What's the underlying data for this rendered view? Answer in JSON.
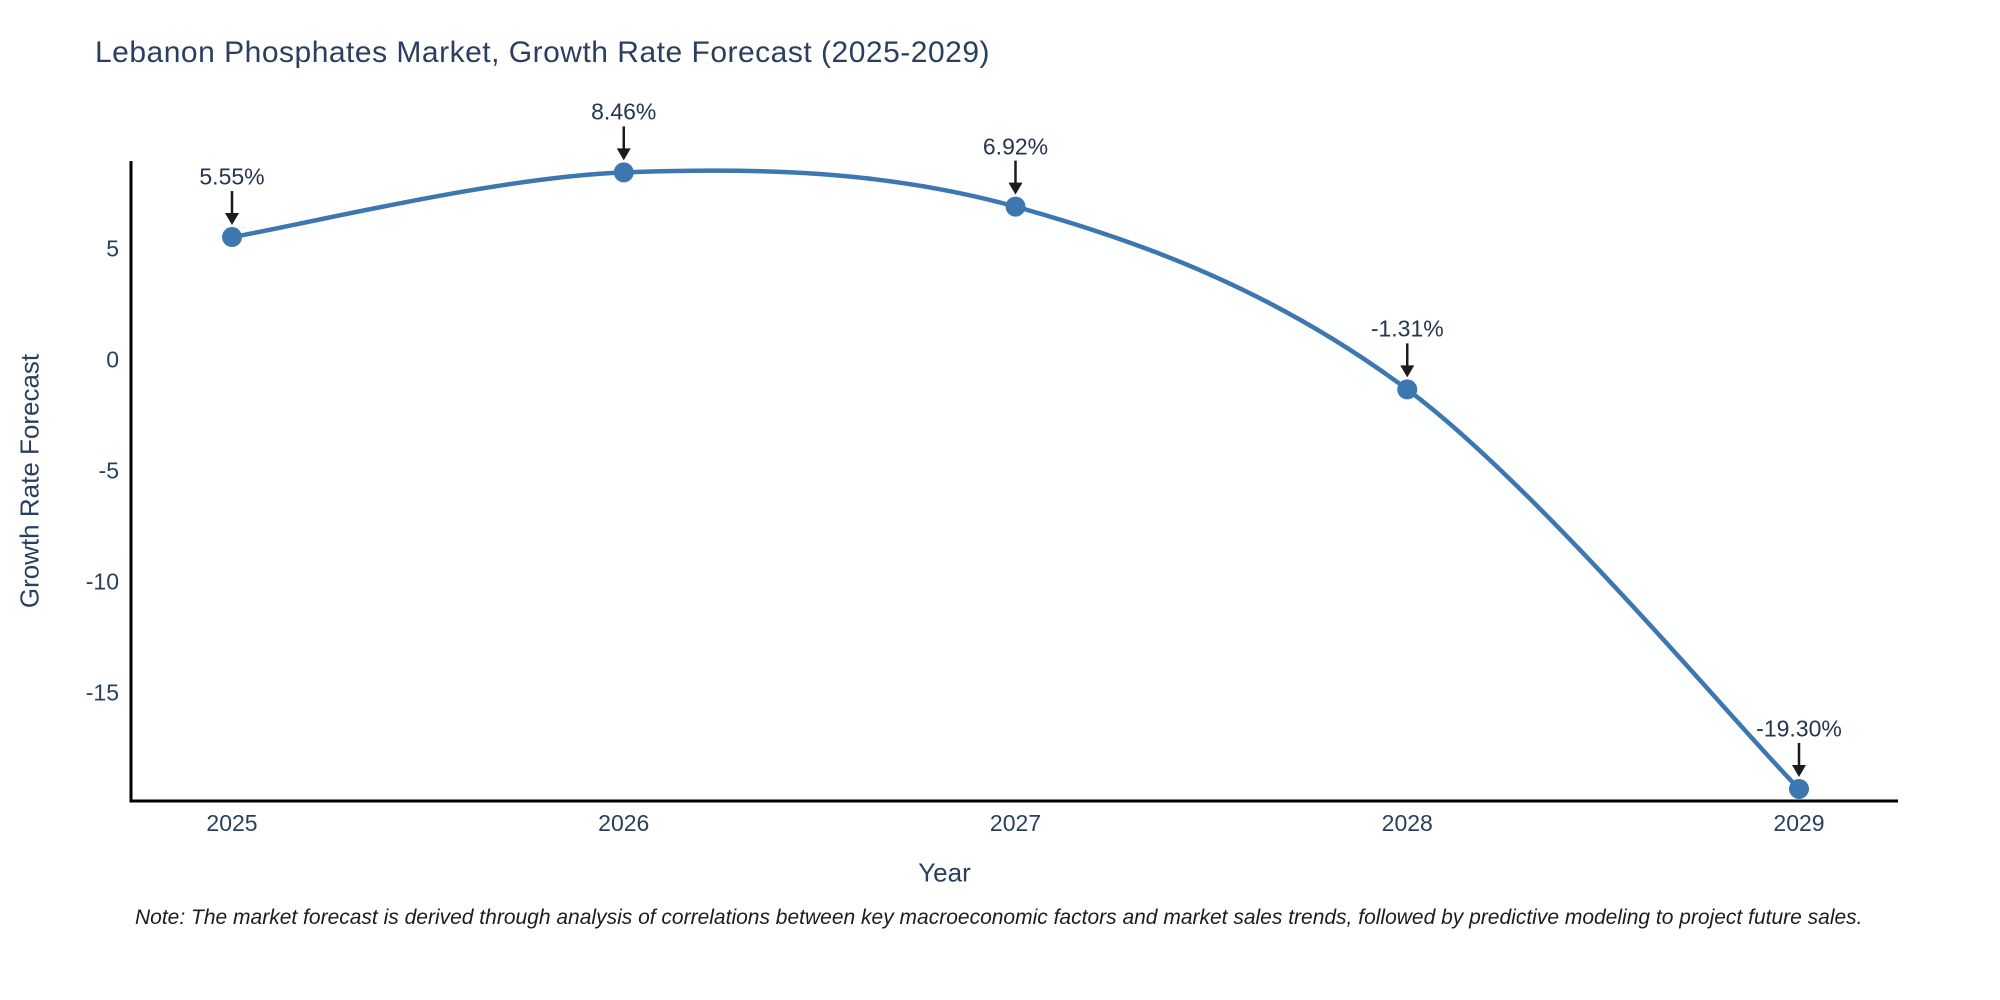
{
  "chart_data": {
    "type": "line",
    "title": "Lebanon Phosphates Market, Growth Rate Forecast (2025-2029)",
    "xlabel": "Year",
    "ylabel": "Growth Rate Forecast",
    "x": [
      2025,
      2026,
      2027,
      2028,
      2029
    ],
    "series": [
      {
        "name": "Growth Rate Forecast",
        "values": [
          5.55,
          8.46,
          6.92,
          -1.31,
          -19.3
        ]
      }
    ],
    "point_labels": [
      "5.55%",
      "8.46%",
      "6.92%",
      "-1.31%",
      "-19.30%"
    ],
    "xticks": [
      "2025",
      "2026",
      "2027",
      "2028",
      "2029"
    ],
    "yticks": [
      5,
      0,
      -5,
      -10,
      -15
    ],
    "ylim": [
      -19.9,
      9.0
    ],
    "line_shape": "spline",
    "grid": false,
    "legend_position": "none",
    "colors": {
      "line": "#3c77b0",
      "marker": "#3c77b0",
      "axis": "#000000",
      "text": "#2a3f5f",
      "arrow": "#1c1c1c"
    }
  },
  "note": {
    "text": "Note: The market forecast is derived through analysis of correlations between key macroeconomic factors and market sales trends, followed by predictive modeling to project future sales."
  }
}
